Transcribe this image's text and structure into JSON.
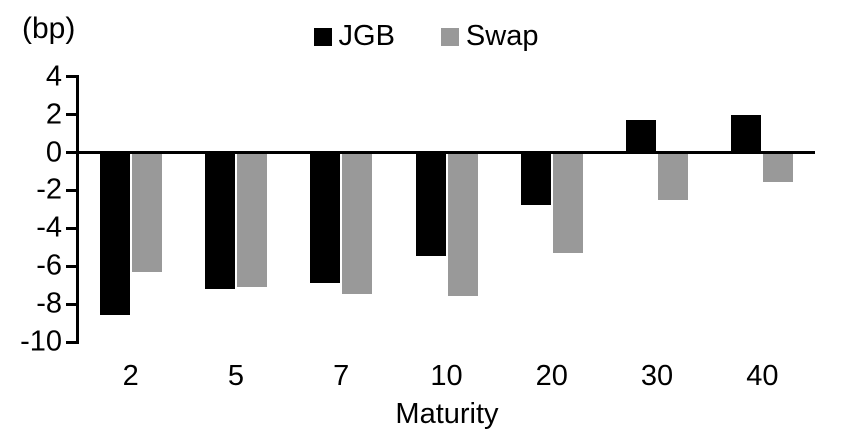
{
  "chart_data": {
    "type": "bar",
    "title": "",
    "unit_label": "(bp)",
    "xlabel": "Maturity",
    "ylabel": "",
    "categories": [
      "2",
      "5",
      "7",
      "10",
      "20",
      "30",
      "40"
    ],
    "series": [
      {
        "name": "JGB",
        "color": "#000000",
        "values": [
          -8.5,
          -7.1,
          -6.8,
          -5.4,
          -2.7,
          1.7,
          2.0
        ]
      },
      {
        "name": "Swap",
        "color": "#999999",
        "values": [
          -6.2,
          -7.0,
          -7.4,
          -7.5,
          -5.2,
          -2.4,
          -1.5
        ]
      }
    ],
    "ylim": [
      -10,
      4
    ],
    "yticks": [
      4,
      2,
      0,
      -2,
      -4,
      -6,
      -8,
      -10
    ],
    "grid": false,
    "legend_position": "top-center"
  }
}
